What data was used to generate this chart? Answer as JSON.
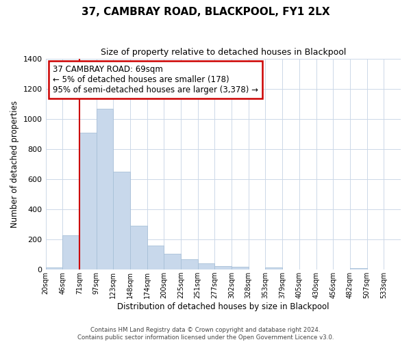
{
  "title": "37, CAMBRAY ROAD, BLACKPOOL, FY1 2LX",
  "subtitle": "Size of property relative to detached houses in Blackpool",
  "xlabel": "Distribution of detached houses by size in Blackpool",
  "ylabel": "Number of detached properties",
  "bar_labels": [
    "20sqm",
    "46sqm",
    "71sqm",
    "97sqm",
    "123sqm",
    "148sqm",
    "174sqm",
    "200sqm",
    "225sqm",
    "251sqm",
    "277sqm",
    "302sqm",
    "328sqm",
    "353sqm",
    "379sqm",
    "405sqm",
    "430sqm",
    "456sqm",
    "482sqm",
    "507sqm",
    "533sqm"
  ],
  "bar_values": [
    15,
    228,
    910,
    1068,
    650,
    290,
    158,
    107,
    70,
    42,
    25,
    18,
    0,
    15,
    0,
    0,
    0,
    0,
    10,
    0,
    0
  ],
  "bar_color": "#c8d8eb",
  "bar_edge_color": "#a8c0d8",
  "marker_bar_index": 2,
  "marker_color": "#cc0000",
  "annotation_title": "37 CAMBRAY ROAD: 69sqm",
  "annotation_line1": "← 5% of detached houses are smaller (178)",
  "annotation_line2": "95% of semi-detached houses are larger (3,378) →",
  "annotation_box_color": "#ffffff",
  "annotation_box_edge": "#cc0000",
  "ylim": [
    0,
    1400
  ],
  "yticks": [
    0,
    200,
    400,
    600,
    800,
    1000,
    1200,
    1400
  ],
  "footer_line1": "Contains HM Land Registry data © Crown copyright and database right 2024.",
  "footer_line2": "Contains public sector information licensed under the Open Government Licence v3.0."
}
